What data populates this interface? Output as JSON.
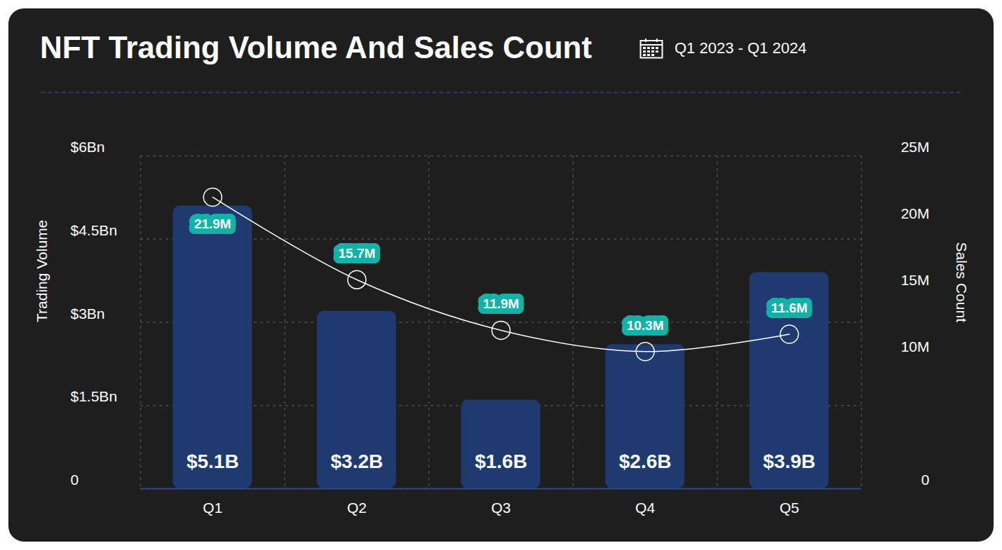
{
  "chart_data": {
    "type": "bar",
    "title": "NFT Trading Volume And Sales Count",
    "subtitle": "Q1 2023 - Q1 2024",
    "categories": [
      "Q1",
      "Q2",
      "Q3",
      "Q4",
      "Q5"
    ],
    "ylim": [
      0,
      6
    ],
    "yticks": [
      0,
      {
        "value": 1.5,
        "label": "$1.5Bn"
      },
      {
        "value": 3,
        "label": "$3Bn"
      },
      {
        "value": 4.5,
        "label": "$4.5Bn"
      },
      {
        "value": 6,
        "label": "$6Bn"
      }
    ],
    "y2lim": [
      0,
      25
    ],
    "y2ticks": [
      0,
      {
        "value": 10,
        "label": "10M"
      },
      {
        "value": 15,
        "label": "15M"
      },
      {
        "value": 20,
        "label": "20M"
      },
      {
        "value": 25,
        "label": "25M"
      }
    ],
    "grid": true,
    "data_labels": true,
    "series": [
      {
        "name": "Trading Volume",
        "type": "bar",
        "color": "#1e3a6e",
        "values": [
          5.1,
          3.2,
          1.6,
          2.6,
          3.9
        ],
        "value_labels": [
          "$5.1B",
          "$3.2B",
          "$1.6B",
          "$2.6B",
          "$3.9B"
        ]
      },
      {
        "name": "Sales Count",
        "type": "line",
        "axis": "y2",
        "color": "#ffffff",
        "marker": "circle",
        "line_style": "solid",
        "values": [
          21.9,
          15.7,
          11.9,
          10.3,
          11.6
        ],
        "value_labels": [
          "21.9M",
          "15.7M",
          "11.9M",
          "10.3M",
          "11.6M"
        ]
      }
    ]
  }
}
